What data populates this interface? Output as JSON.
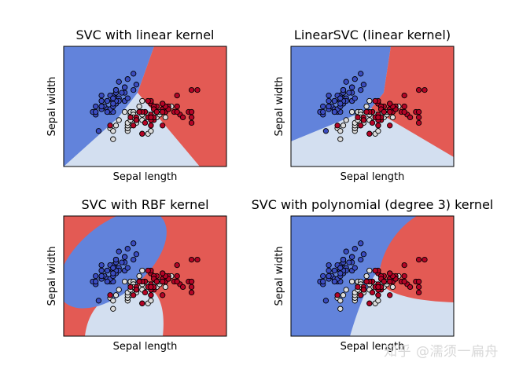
{
  "watermark": "知乎 @濡须一扁舟",
  "colors": {
    "class0": "#6283db",
    "class1": "#d3dff0",
    "class2": "#e35a54",
    "pt0": "#3b4cc0",
    "pt1": "#dcdcdc",
    "pt2": "#b40426"
  },
  "chart_data": [
    {
      "type": "scatter",
      "title": "SVC with linear kernel",
      "xlabel": "Sepal length",
      "ylabel": "Sepal width",
      "xlim": [
        3.3,
        8.9
      ],
      "ylim": [
        1.0,
        5.4
      ],
      "ticks": "none"
    },
    {
      "type": "scatter",
      "title": "LinearSVC (linear kernel)",
      "xlabel": "Sepal length",
      "ylabel": "Sepal width",
      "xlim": [
        3.3,
        8.9
      ],
      "ylim": [
        1.0,
        5.4
      ],
      "ticks": "none"
    },
    {
      "type": "scatter",
      "title": "SVC with RBF kernel",
      "xlabel": "Sepal length",
      "ylabel": "Sepal width",
      "xlim": [
        3.3,
        8.9
      ],
      "ylim": [
        1.0,
        5.4
      ],
      "ticks": "none"
    },
    {
      "type": "scatter",
      "title": "SVC with polynomial (degree 3) kernel",
      "xlabel": "Sepal length",
      "ylabel": "Sepal width",
      "xlim": [
        3.3,
        8.9
      ],
      "ylim": [
        1.0,
        5.4
      ],
      "ticks": "none"
    }
  ],
  "points": {
    "class0": [
      [
        5.1,
        3.5
      ],
      [
        4.9,
        3.0
      ],
      [
        4.7,
        3.2
      ],
      [
        4.6,
        3.1
      ],
      [
        5.0,
        3.6
      ],
      [
        5.4,
        3.9
      ],
      [
        4.6,
        3.4
      ],
      [
        5.0,
        3.4
      ],
      [
        4.4,
        2.9
      ],
      [
        4.9,
        3.1
      ],
      [
        5.4,
        3.7
      ],
      [
        4.8,
        3.4
      ],
      [
        4.8,
        3.0
      ],
      [
        4.3,
        3.0
      ],
      [
        5.8,
        4.0
      ],
      [
        5.7,
        4.4
      ],
      [
        5.4,
        3.9
      ],
      [
        5.1,
        3.5
      ],
      [
        5.7,
        3.8
      ],
      [
        5.1,
        3.8
      ],
      [
        5.4,
        3.4
      ],
      [
        5.1,
        3.7
      ],
      [
        4.6,
        3.6
      ],
      [
        5.1,
        3.3
      ],
      [
        4.8,
        3.4
      ],
      [
        5.0,
        3.0
      ],
      [
        5.0,
        3.4
      ],
      [
        5.2,
        3.5
      ],
      [
        5.2,
        3.4
      ],
      [
        4.7,
        3.2
      ],
      [
        4.8,
        3.1
      ],
      [
        5.4,
        3.4
      ],
      [
        5.2,
        4.1
      ],
      [
        5.5,
        4.2
      ],
      [
        4.9,
        3.1
      ],
      [
        5.0,
        3.2
      ],
      [
        5.5,
        3.5
      ],
      [
        4.9,
        3.6
      ],
      [
        4.4,
        3.0
      ],
      [
        5.1,
        3.4
      ],
      [
        5.0,
        3.5
      ],
      [
        4.5,
        2.3
      ],
      [
        4.4,
        3.2
      ],
      [
        5.0,
        3.5
      ],
      [
        5.1,
        3.8
      ],
      [
        4.8,
        3.0
      ],
      [
        5.1,
        3.8
      ],
      [
        4.6,
        3.2
      ],
      [
        5.3,
        3.7
      ],
      [
        5.0,
        3.3
      ]
    ],
    "class1": [
      [
        7.0,
        3.2
      ],
      [
        6.4,
        3.2
      ],
      [
        6.9,
        3.1
      ],
      [
        5.5,
        2.3
      ],
      [
        6.5,
        2.8
      ],
      [
        5.7,
        2.8
      ],
      [
        6.3,
        3.3
      ],
      [
        4.9,
        2.4
      ],
      [
        6.6,
        2.9
      ],
      [
        5.2,
        2.7
      ],
      [
        5.0,
        2.0
      ],
      [
        5.9,
        3.0
      ],
      [
        6.0,
        2.2
      ],
      [
        6.1,
        2.9
      ],
      [
        5.6,
        2.9
      ],
      [
        6.7,
        3.1
      ],
      [
        5.6,
        3.0
      ],
      [
        5.8,
        2.7
      ],
      [
        6.2,
        2.2
      ],
      [
        5.6,
        2.5
      ],
      [
        5.9,
        3.2
      ],
      [
        6.1,
        2.8
      ],
      [
        6.3,
        2.5
      ],
      [
        6.1,
        2.8
      ],
      [
        6.4,
        2.9
      ],
      [
        6.6,
        3.0
      ],
      [
        6.8,
        2.8
      ],
      [
        6.7,
        3.0
      ],
      [
        6.0,
        2.9
      ],
      [
        5.7,
        2.6
      ],
      [
        5.5,
        2.4
      ],
      [
        5.5,
        2.4
      ],
      [
        5.8,
        2.7
      ],
      [
        6.0,
        2.7
      ],
      [
        5.4,
        3.0
      ],
      [
        6.0,
        3.4
      ],
      [
        6.7,
        3.1
      ],
      [
        6.3,
        2.3
      ],
      [
        5.6,
        3.0
      ],
      [
        5.5,
        2.5
      ],
      [
        5.5,
        2.6
      ],
      [
        6.1,
        3.0
      ],
      [
        5.8,
        2.6
      ],
      [
        5.0,
        2.3
      ],
      [
        5.6,
        2.7
      ],
      [
        5.7,
        3.0
      ],
      [
        5.7,
        2.9
      ],
      [
        6.2,
        2.9
      ],
      [
        5.1,
        2.5
      ],
      [
        5.7,
        2.8
      ]
    ],
    "class2": [
      [
        6.3,
        3.3
      ],
      [
        5.8,
        2.7
      ],
      [
        7.1,
        3.0
      ],
      [
        6.3,
        2.9
      ],
      [
        6.5,
        3.0
      ],
      [
        7.6,
        3.0
      ],
      [
        4.9,
        2.5
      ],
      [
        7.3,
        2.9
      ],
      [
        6.7,
        2.5
      ],
      [
        7.2,
        3.6
      ],
      [
        6.5,
        3.2
      ],
      [
        6.4,
        2.7
      ],
      [
        6.8,
        3.0
      ],
      [
        5.7,
        2.5
      ],
      [
        5.8,
        2.8
      ],
      [
        6.4,
        3.2
      ],
      [
        6.5,
        3.0
      ],
      [
        7.7,
        3.8
      ],
      [
        7.7,
        2.6
      ],
      [
        6.0,
        2.2
      ],
      [
        6.9,
        3.2
      ],
      [
        5.6,
        2.8
      ],
      [
        7.7,
        2.8
      ],
      [
        6.3,
        2.7
      ],
      [
        6.7,
        3.3
      ],
      [
        7.2,
        3.2
      ],
      [
        6.2,
        2.8
      ],
      [
        6.1,
        3.0
      ],
      [
        6.4,
        2.8
      ],
      [
        7.2,
        3.0
      ],
      [
        7.4,
        2.8
      ],
      [
        7.9,
        3.8
      ],
      [
        6.4,
        2.8
      ],
      [
        6.3,
        2.8
      ],
      [
        6.1,
        2.6
      ],
      [
        7.7,
        3.0
      ],
      [
        6.3,
        3.4
      ],
      [
        6.4,
        3.1
      ],
      [
        6.0,
        3.0
      ],
      [
        6.9,
        3.1
      ],
      [
        6.7,
        3.1
      ],
      [
        6.9,
        3.1
      ],
      [
        5.8,
        2.7
      ],
      [
        6.8,
        3.2
      ],
      [
        6.7,
        3.3
      ],
      [
        6.7,
        3.0
      ],
      [
        6.3,
        2.5
      ],
      [
        6.5,
        3.0
      ],
      [
        6.2,
        3.4
      ],
      [
        5.9,
        3.0
      ]
    ]
  }
}
